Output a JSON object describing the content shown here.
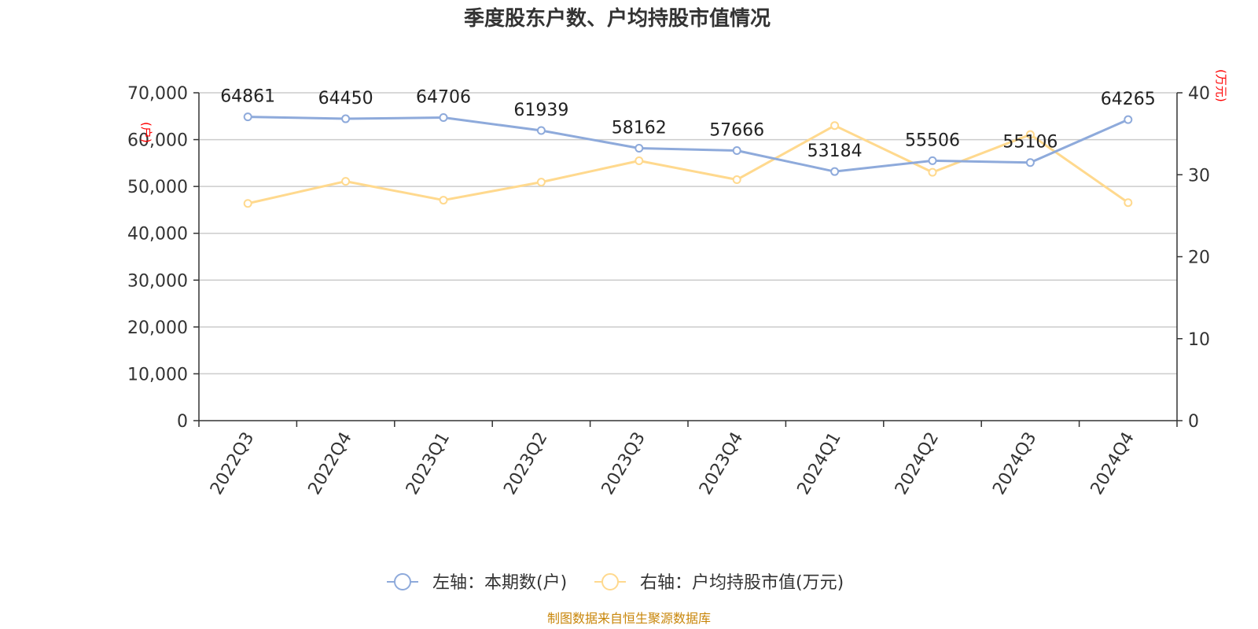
{
  "chart_data": {
    "type": "line",
    "title": "季度股东户数、户均持股市值情况",
    "categories": [
      "2022Q3",
      "2022Q4",
      "2023Q1",
      "2023Q2",
      "2023Q3",
      "2023Q4",
      "2024Q1",
      "2024Q2",
      "2024Q3",
      "2024Q4"
    ],
    "left_axis": {
      "unit": "(户)",
      "ylim": [
        0,
        70000
      ],
      "ticks": [
        "0",
        "10,000",
        "20,000",
        "30,000",
        "40,000",
        "50,000",
        "60,000",
        "70,000"
      ]
    },
    "right_axis": {
      "unit": "(万元)",
      "ylim": [
        0,
        40
      ],
      "ticks": [
        "0",
        "10",
        "20",
        "30",
        "40"
      ]
    },
    "series": [
      {
        "name": "左轴：本期数(户)",
        "axis": "left",
        "color": "#8eaadb",
        "values": [
          64861,
          64450,
          64706,
          61939,
          58162,
          57666,
          53184,
          55506,
          55106,
          64265
        ],
        "labels": [
          "64861",
          "64450",
          "64706",
          "61939",
          "58162",
          "57666",
          "53184",
          "55506",
          "55106",
          "64265"
        ]
      },
      {
        "name": "右轴：户均持股市值(万元)",
        "axis": "right",
        "color": "#ffd98e",
        "values": [
          26.5,
          29.2,
          26.9,
          29.1,
          31.7,
          29.4,
          36.0,
          30.3,
          34.9,
          26.6
        ]
      }
    ],
    "grid": true,
    "legend_position": "bottom"
  },
  "source_text": "制图数据来自恒生聚源数据库"
}
